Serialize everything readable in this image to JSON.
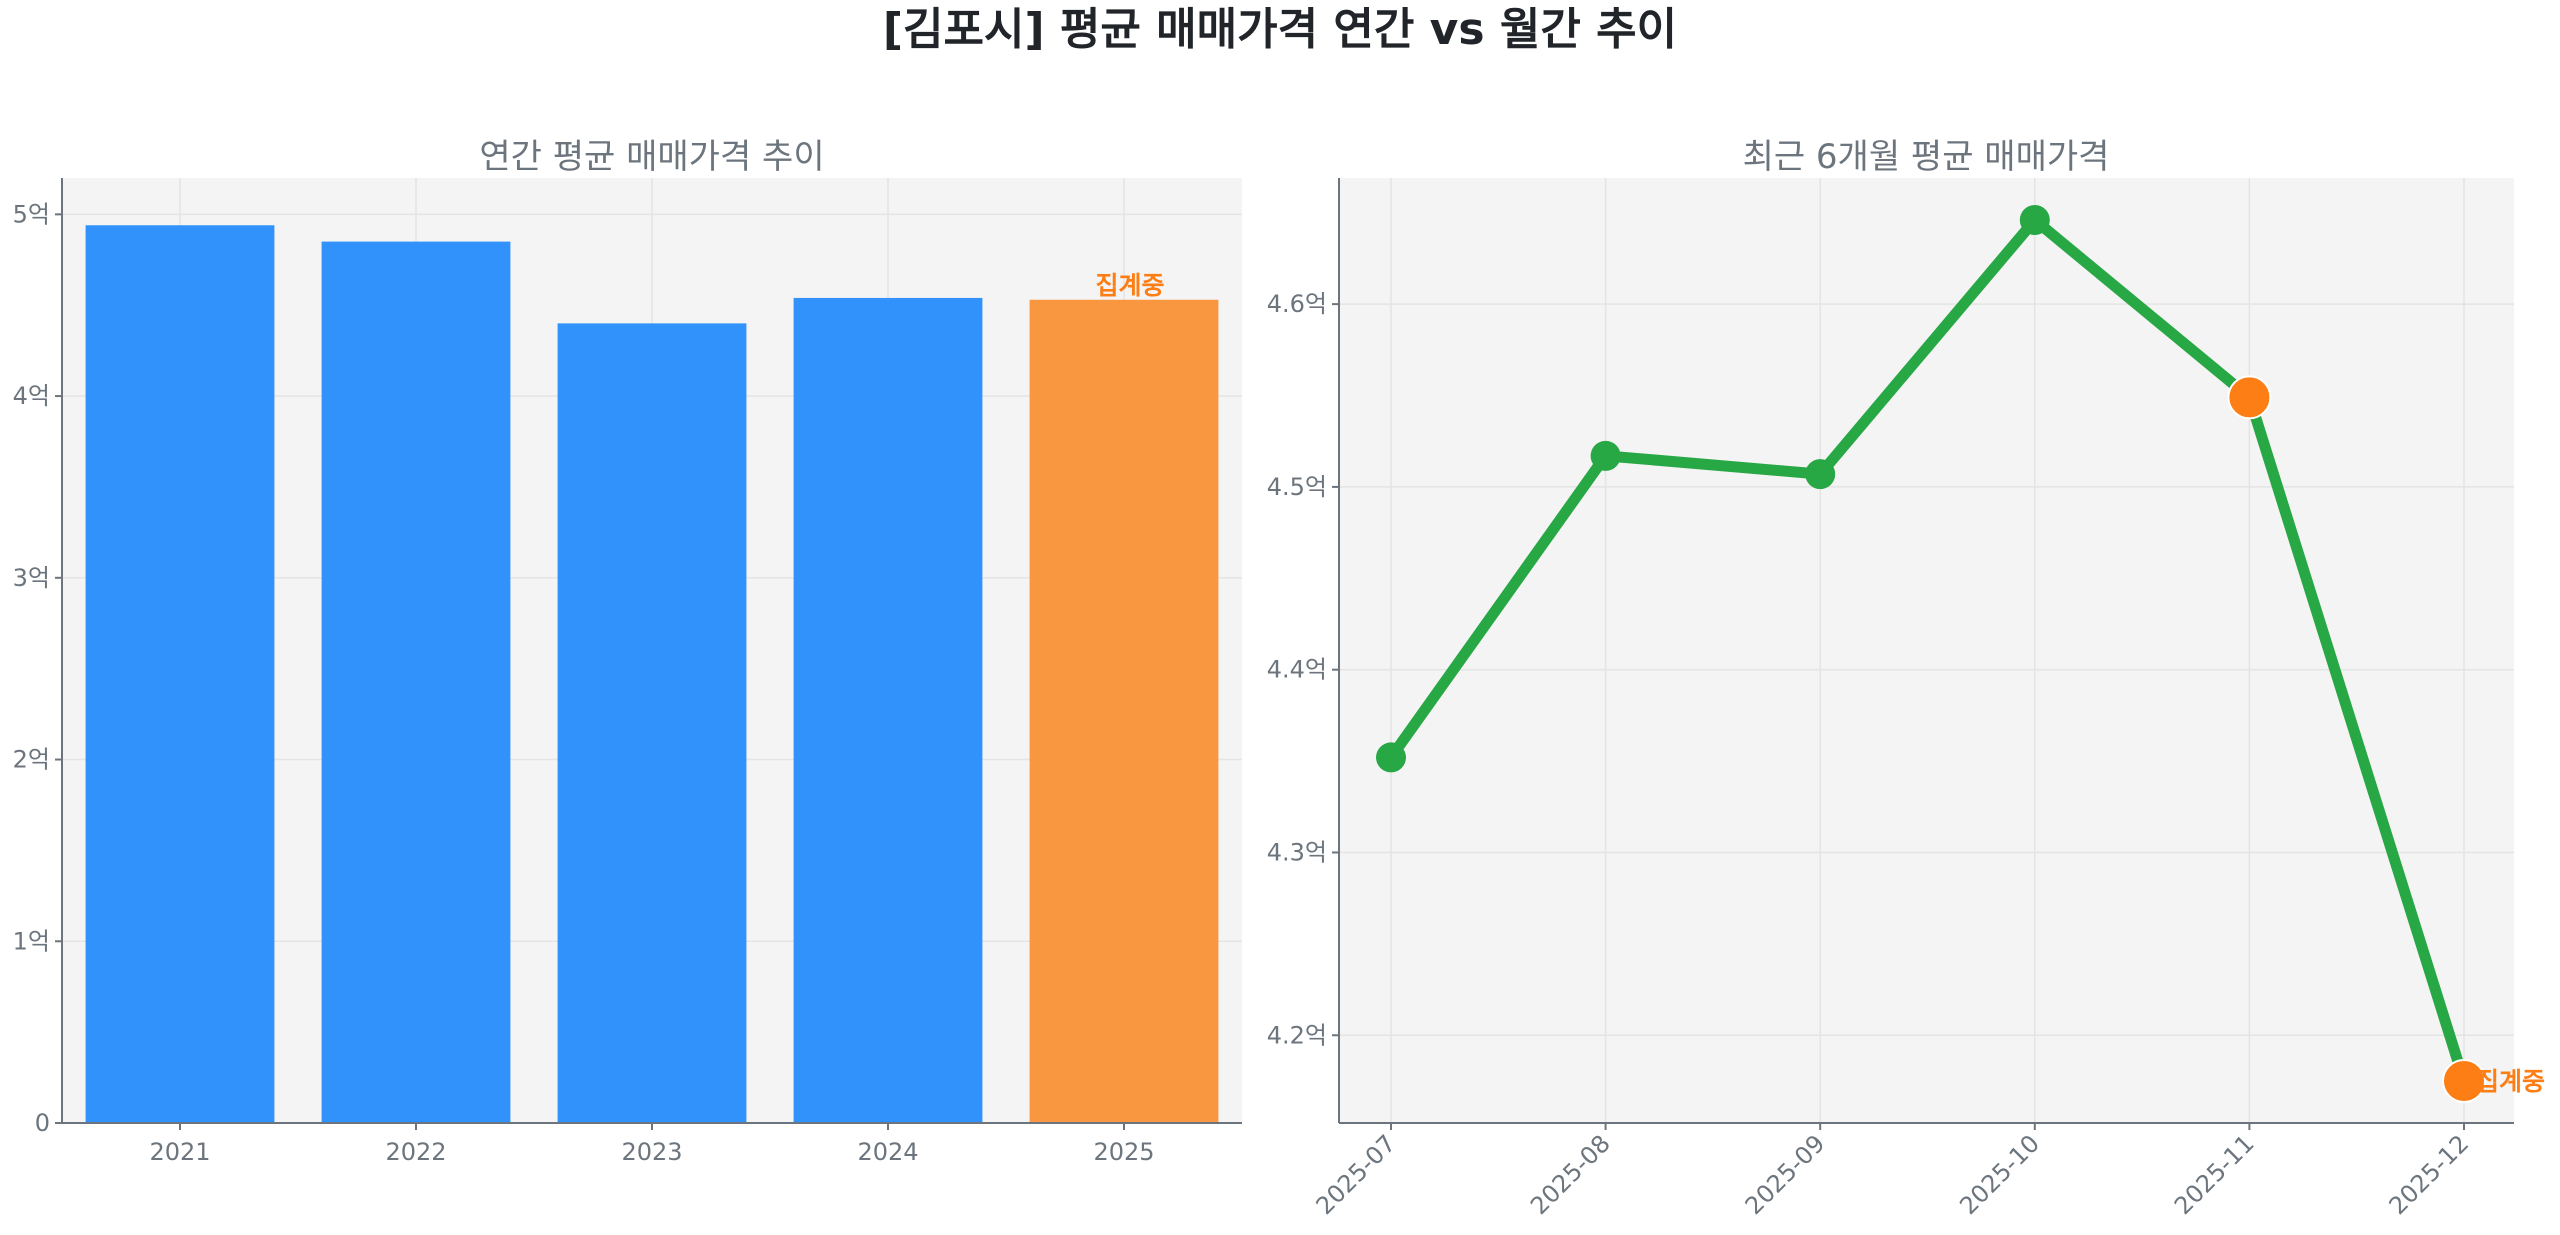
{
  "title": "[김포시] 평균 매매가격 연간 vs 월간 추이",
  "colors": {
    "bar": "#3092fa",
    "bar_partial": "#f99740",
    "line": "#28a745",
    "marker_partial": "#fd7e14",
    "plot_bg": "#f4f4f4",
    "text": "#6c757d"
  },
  "chart_data": [
    {
      "type": "bar",
      "title": "연간 평균 매매가격 추이",
      "categories": [
        "2021",
        "2022",
        "2023",
        "2024",
        "2025"
      ],
      "values": [
        4.94,
        4.85,
        4.4,
        4.54,
        4.53
      ],
      "unit": "억",
      "ylim": [
        0,
        5.2
      ],
      "yticks": [
        0,
        1,
        2,
        3,
        4,
        5
      ],
      "ytick_labels": [
        "0",
        "1억",
        "2억",
        "3억",
        "4억",
        "5억"
      ],
      "partial_category": "2025",
      "annotation": "집계중",
      "grid": true
    },
    {
      "type": "line",
      "title": "최근 6개월 평균 매매가격",
      "categories": [
        "2025-07",
        "2025-08",
        "2025-09",
        "2025-10",
        "2025-11",
        "2025-12"
      ],
      "values": [
        4.352,
        4.517,
        4.507,
        4.646,
        4.549,
        4.175
      ],
      "unit": "억",
      "ylim": [
        4.152,
        4.669
      ],
      "yticks": [
        4.2,
        4.3,
        4.4,
        4.5,
        4.6
      ],
      "ytick_labels": [
        "4.2억",
        "4.3억",
        "4.4억",
        "4.5억",
        "4.6억"
      ],
      "highlighted_points": [
        "2025-11",
        "2025-12"
      ],
      "annotation": "집계중",
      "grid": true
    }
  ]
}
